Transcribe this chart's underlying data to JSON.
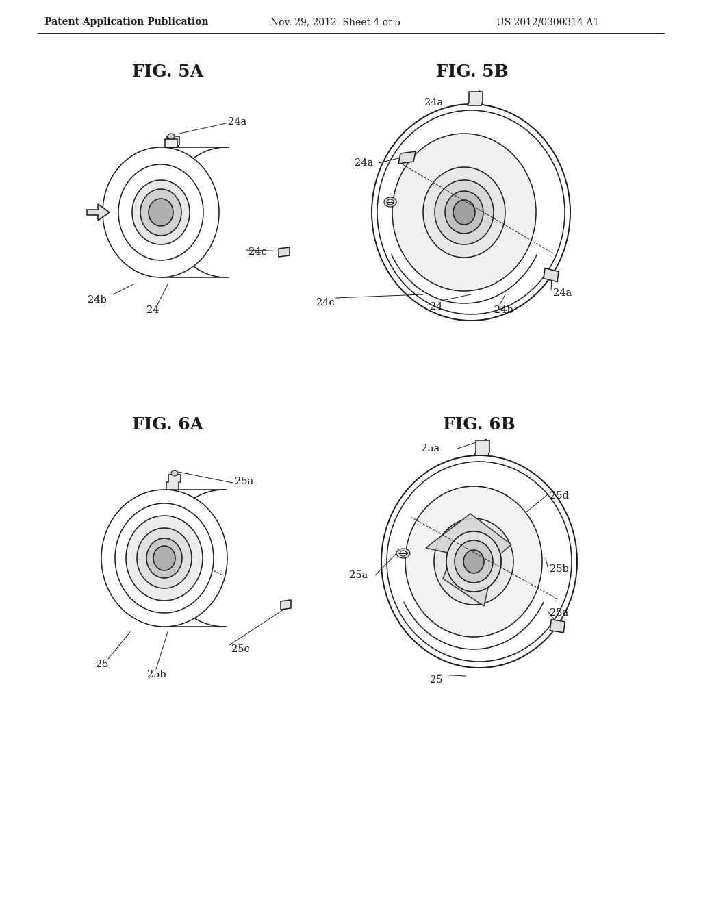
{
  "bg_color": "#ffffff",
  "line_color": "#1a1a1a",
  "header_left": "Patent Application Publication",
  "header_center": "Nov. 29, 2012  Sheet 4 of 5",
  "header_right": "US 2012/0300314 A1",
  "fig_title_fontsize": 18,
  "header_fontsize": 10,
  "label_fontsize": 10.5,
  "lw": 1.1
}
